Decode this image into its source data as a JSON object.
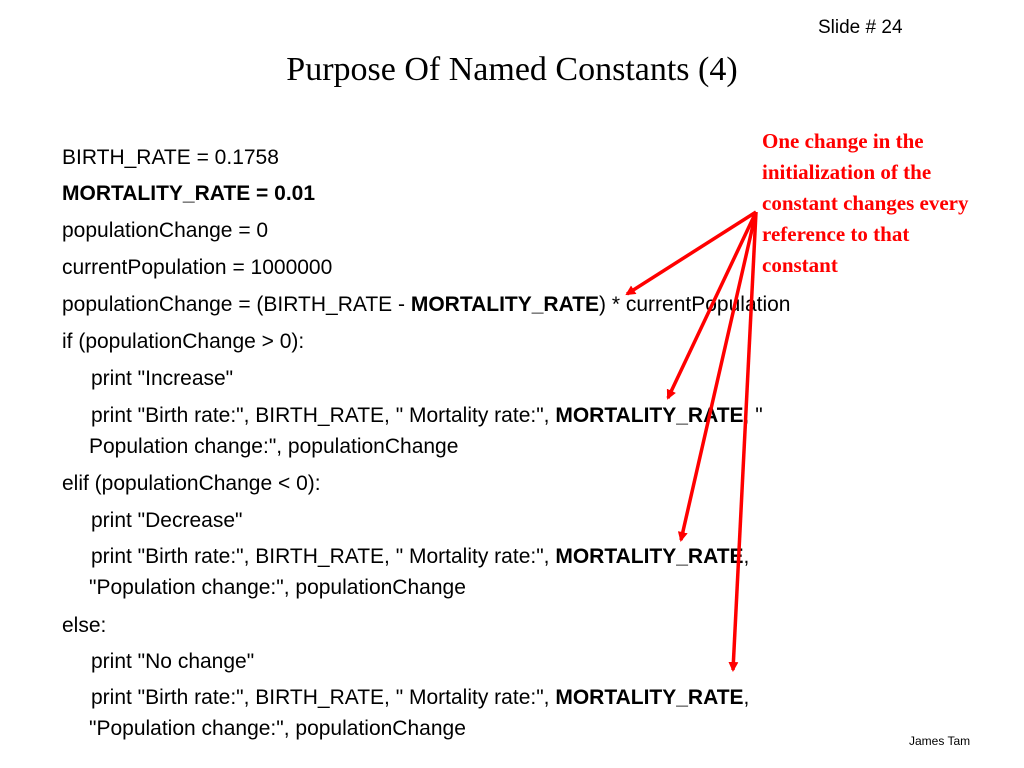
{
  "slide_number": "Slide # 24",
  "title": "Purpose Of Named Constants (4)",
  "code": {
    "l1": "BIRTH_RATE = 0.1758",
    "l2": "MORTALITY_RATE = 0.01",
    "l3": "populationChange = 0",
    "l4": "currentPopulation = 1000000",
    "l5a": "populationChange = (BIRTH_RATE - ",
    "l5b": "MORTALITY_RATE",
    "l5c": ") * currentPopulation",
    "l6": "if (populationChange > 0):",
    "l7": "print \"Increase\"",
    "l8a": "print \"Birth rate:\", BIRTH_RATE, \" Mortality rate:\", ",
    "l8b": "MORTALITY_RATE",
    "l8c": ", \"",
    "l9": "Population change:\", populationChange",
    "l10": "elif (populationChange < 0):",
    "l11": "print \"Decrease\"",
    "l12a": "print \"Birth rate:\", BIRTH_RATE, \" Mortality rate:\", ",
    "l12b": "MORTALITY_RATE",
    "l12c": ",",
    "l13": "\"Population change:\", populationChange",
    "l14": "else:",
    "l15": "print \"No change\"",
    "l16a": "print \"Birth rate:\", BIRTH_RATE, \" Mortality rate:\", ",
    "l16b": "MORTALITY_RATE",
    "l16c": ",",
    "l17": "\"Population change:\", populationChange"
  },
  "annotation": {
    "lines": [
      "One change in the",
      "initialization of the",
      "constant changes every",
      "reference to that",
      "constant"
    ],
    "color": "#ff0000"
  },
  "author": "James Tam"
}
